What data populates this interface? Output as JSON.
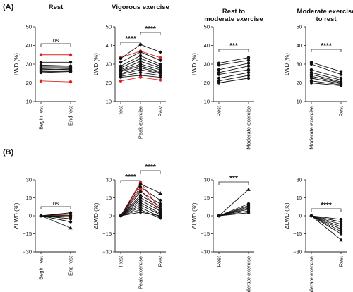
{
  "panel_labels": [
    "(A)",
    "(B)"
  ],
  "colors": {
    "black": "#111111",
    "red": "#e0211b"
  },
  "chart_data": [
    {
      "type": "paired-scatter",
      "row": "A",
      "title": "Rest",
      "ylabel": "LWD (%)",
      "ylim": [
        10,
        50
      ],
      "yticks": [
        10,
        20,
        30,
        40,
        50
      ],
      "categories": [
        "Begin rest",
        "End rest"
      ],
      "annotations": [
        {
          "from": 0,
          "to": 1,
          "text": "ns"
        }
      ],
      "series": [
        {
          "values": [
            35.0,
            35.0
          ],
          "color": "red",
          "marker": "circle"
        },
        {
          "values": [
            31.0,
            31.0
          ],
          "color": "black",
          "marker": "circle"
        },
        {
          "values": [
            29.5,
            29.0
          ],
          "color": "black",
          "marker": "circle"
        },
        {
          "values": [
            28.5,
            28.5
          ],
          "color": "black",
          "marker": "circle"
        },
        {
          "values": [
            28.0,
            28.0
          ],
          "color": "black",
          "marker": "circle"
        },
        {
          "values": [
            27.5,
            27.0
          ],
          "color": "black",
          "marker": "circle"
        },
        {
          "values": [
            27.0,
            27.5
          ],
          "color": "black",
          "marker": "circle"
        },
        {
          "values": [
            26.5,
            26.5
          ],
          "color": "black",
          "marker": "circle"
        },
        {
          "values": [
            26.0,
            26.0
          ],
          "color": "black",
          "marker": "circle"
        },
        {
          "values": [
            25.5,
            26.0
          ],
          "color": "black",
          "marker": "circle"
        },
        {
          "values": [
            21.0,
            20.5
          ],
          "color": "red",
          "marker": "circle"
        }
      ]
    },
    {
      "type": "paired-scatter",
      "row": "A",
      "title": "Vigorous exercise",
      "ylabel": "LWD (%)",
      "ylim": [
        10,
        50
      ],
      "yticks": [
        10,
        20,
        30,
        40,
        50
      ],
      "categories": [
        "Rest",
        "Peak exercise",
        "Rest"
      ],
      "annotations": [
        {
          "from": 0,
          "to": 1,
          "text": "****",
          "level": 0
        },
        {
          "from": 1,
          "to": 2,
          "text": "****",
          "level": 1
        }
      ],
      "series": [
        {
          "values": [
            33.5,
            37.0,
            33.5
          ],
          "color": "red",
          "marker": "circle"
        },
        {
          "values": [
            33.0,
            40.5,
            36.5
          ],
          "color": "black",
          "marker": "circle"
        },
        {
          "values": [
            31.0,
            36.5,
            32.0
          ],
          "color": "black",
          "marker": "circle"
        },
        {
          "values": [
            29.0,
            34.5,
            30.0
          ],
          "color": "black",
          "marker": "circle"
        },
        {
          "values": [
            28.0,
            33.0,
            29.0
          ],
          "color": "black",
          "marker": "circle"
        },
        {
          "values": [
            27.0,
            31.5,
            28.0
          ],
          "color": "black",
          "marker": "circle"
        },
        {
          "values": [
            26.5,
            30.0,
            27.0
          ],
          "color": "black",
          "marker": "circle"
        },
        {
          "values": [
            26.0,
            29.0,
            26.0
          ],
          "color": "black",
          "marker": "circle"
        },
        {
          "values": [
            25.0,
            28.0,
            25.5
          ],
          "color": "black",
          "marker": "circle"
        },
        {
          "values": [
            24.5,
            27.0,
            25.0
          ],
          "color": "black",
          "marker": "circle"
        },
        {
          "values": [
            23.5,
            25.5,
            24.0
          ],
          "color": "black",
          "marker": "circle"
        },
        {
          "values": [
            23.0,
            24.0,
            23.0
          ],
          "color": "black",
          "marker": "circle"
        },
        {
          "values": [
            21.0,
            23.0,
            21.5
          ],
          "color": "red",
          "marker": "circle"
        }
      ]
    },
    {
      "type": "paired-scatter",
      "row": "A",
      "title": "Rest to moderate exercise",
      "title_lines": [
        "Rest to",
        "moderate exercise"
      ],
      "ylabel": "LWD (%)",
      "ylim": [
        10,
        50
      ],
      "yticks": [
        10,
        20,
        30,
        40,
        50
      ],
      "categories": [
        "Rest",
        "Moderate exercise"
      ],
      "annotations": [
        {
          "from": 0,
          "to": 1,
          "text": "***"
        }
      ],
      "series": [
        {
          "values": [
            30.5,
            33.5
          ],
          "color": "black",
          "marker": "circle"
        },
        {
          "values": [
            29.5,
            32.0
          ],
          "color": "black",
          "marker": "circle"
        },
        {
          "values": [
            27.0,
            30.5
          ],
          "color": "black",
          "marker": "circle"
        },
        {
          "values": [
            25.5,
            29.0
          ],
          "color": "black",
          "marker": "circle"
        },
        {
          "values": [
            24.5,
            27.0
          ],
          "color": "black",
          "marker": "circle"
        },
        {
          "values": [
            22.5,
            25.5
          ],
          "color": "black",
          "marker": "circle"
        },
        {
          "values": [
            21.0,
            24.0
          ],
          "color": "black",
          "marker": "circle"
        },
        {
          "values": [
            20.0,
            22.5
          ],
          "color": "black",
          "marker": "circle"
        }
      ]
    },
    {
      "type": "paired-scatter",
      "row": "A",
      "title": "Moderate exercise to rest",
      "title_lines": [
        "Moderate exercise",
        "to rest"
      ],
      "ylabel": "LWD (%)",
      "ylim": [
        10,
        50
      ],
      "yticks": [
        10,
        20,
        30,
        40,
        50
      ],
      "categories": [
        "Moderate exercise",
        "Rest"
      ],
      "annotations": [
        {
          "from": 0,
          "to": 1,
          "text": "****"
        }
      ],
      "series": [
        {
          "values": [
            31.0,
            26.0
          ],
          "color": "black",
          "marker": "circle"
        },
        {
          "values": [
            30.0,
            24.5
          ],
          "color": "black",
          "marker": "circle"
        },
        {
          "values": [
            27.0,
            22.5
          ],
          "color": "black",
          "marker": "circle"
        },
        {
          "values": [
            25.5,
            21.5
          ],
          "color": "black",
          "marker": "circle"
        },
        {
          "values": [
            24.5,
            20.5
          ],
          "color": "black",
          "marker": "circle"
        },
        {
          "values": [
            23.5,
            20.0
          ],
          "color": "black",
          "marker": "circle"
        },
        {
          "values": [
            22.5,
            19.5
          ],
          "color": "black",
          "marker": "circle"
        },
        {
          "values": [
            21.0,
            19.0
          ],
          "color": "black",
          "marker": "circle"
        },
        {
          "values": [
            20.0,
            18.5
          ],
          "color": "black",
          "marker": "circle"
        }
      ]
    },
    {
      "type": "paired-scatter",
      "row": "B",
      "ylabel": "ΔLWD (%)",
      "ylim": [
        -30,
        30
      ],
      "yticks": [
        -30,
        -15,
        0,
        15,
        30
      ],
      "categories": [
        "Begin rest",
        "End rest"
      ],
      "annotations": [
        {
          "from": 0,
          "to": 1,
          "text": "ns"
        }
      ],
      "series": [
        {
          "values": [
            0,
            2.5
          ],
          "color": "black",
          "marker": "circle"
        },
        {
          "values": [
            0,
            1.5
          ],
          "color": "black",
          "marker": "circle"
        },
        {
          "values": [
            0,
            0.5
          ],
          "color": "red",
          "marker": "circle"
        },
        {
          "values": [
            0,
            0.0
          ],
          "color": "black",
          "marker": "circle"
        },
        {
          "values": [
            0,
            -1.0
          ],
          "color": "black",
          "marker": "circle"
        },
        {
          "values": [
            0,
            -2.5
          ],
          "color": "black",
          "marker": "circle"
        },
        {
          "values": [
            0,
            -5.0
          ],
          "color": "black",
          "marker": "circle"
        },
        {
          "values": [
            0,
            -10.0
          ],
          "color": "black",
          "marker": "triangle"
        }
      ]
    },
    {
      "type": "paired-scatter",
      "row": "B",
      "ylabel": "ΔLWD (%)",
      "ylim": [
        -30,
        30
      ],
      "yticks": [
        -30,
        -15,
        0,
        15,
        30
      ],
      "categories": [
        "Rest",
        "Peak exercise",
        "Rest"
      ],
      "annotations": [
        {
          "from": 0,
          "to": 1,
          "text": "****",
          "level": 0
        },
        {
          "from": 1,
          "to": 2,
          "text": "****",
          "level": 1
        }
      ],
      "series": [
        {
          "values": [
            0,
            28.0,
            5.0
          ],
          "color": "red",
          "marker": "circle"
        },
        {
          "values": [
            0,
            26.5,
            19.0
          ],
          "color": "black",
          "marker": "triangle"
        },
        {
          "values": [
            0,
            24.0,
            13.0
          ],
          "color": "black",
          "marker": "circle"
        },
        {
          "values": [
            0,
            22.0,
            3.0
          ],
          "color": "red",
          "marker": "circle"
        },
        {
          "values": [
            0,
            20.0,
            10.0
          ],
          "color": "black",
          "marker": "circle"
        },
        {
          "values": [
            0,
            17.0,
            8.0
          ],
          "color": "black",
          "marker": "circle"
        },
        {
          "values": [
            0,
            15.0,
            6.0
          ],
          "color": "black",
          "marker": "circle"
        },
        {
          "values": [
            0,
            13.0,
            4.0
          ],
          "color": "black",
          "marker": "circle"
        },
        {
          "values": [
            0,
            11.0,
            2.0
          ],
          "color": "black",
          "marker": "circle"
        },
        {
          "values": [
            0,
            9.0,
            1.0
          ],
          "color": "black",
          "marker": "circle"
        },
        {
          "values": [
            0,
            7.0,
            -1.0
          ],
          "color": "black",
          "marker": "circle"
        },
        {
          "values": [
            0,
            5.0,
            -2.0
          ],
          "color": "black",
          "marker": "circle"
        },
        {
          "values": [
            0,
            3.0,
            0.0
          ],
          "color": "black",
          "marker": "circle"
        }
      ]
    },
    {
      "type": "paired-scatter",
      "row": "B",
      "ylabel": "ΔLWD (%)",
      "ylim": [
        -30,
        30
      ],
      "yticks": [
        -30,
        -15,
        0,
        15,
        30
      ],
      "categories": [
        "Rest",
        "Moderate exercise"
      ],
      "annotations": [
        {
          "from": 0,
          "to": 1,
          "text": "***"
        }
      ],
      "series": [
        {
          "values": [
            0,
            22.0
          ],
          "color": "black",
          "marker": "triangle"
        },
        {
          "values": [
            0,
            10.0
          ],
          "color": "black",
          "marker": "circle"
        },
        {
          "values": [
            0,
            8.5
          ],
          "color": "black",
          "marker": "circle"
        },
        {
          "values": [
            0,
            7.5
          ],
          "color": "black",
          "marker": "circle"
        },
        {
          "values": [
            0,
            6.5
          ],
          "color": "black",
          "marker": "circle"
        },
        {
          "values": [
            0,
            5.5
          ],
          "color": "black",
          "marker": "circle"
        },
        {
          "values": [
            0,
            4.0
          ],
          "color": "black",
          "marker": "circle"
        },
        {
          "values": [
            0,
            2.5
          ],
          "color": "black",
          "marker": "circle"
        }
      ]
    },
    {
      "type": "paired-scatter",
      "row": "B",
      "ylabel": "ΔLWD (%)",
      "ylim": [
        -30,
        30
      ],
      "yticks": [
        -30,
        -15,
        0,
        15,
        30
      ],
      "categories": [
        "Moderate exercise",
        "Rest"
      ],
      "annotations": [
        {
          "from": 0,
          "to": 1,
          "text": "****"
        }
      ],
      "series": [
        {
          "values": [
            0,
            -3.0
          ],
          "color": "black",
          "marker": "circle"
        },
        {
          "values": [
            0,
            -5.0
          ],
          "color": "black",
          "marker": "circle"
        },
        {
          "values": [
            0,
            -7.0
          ],
          "color": "black",
          "marker": "circle"
        },
        {
          "values": [
            0,
            -9.0
          ],
          "color": "black",
          "marker": "circle"
        },
        {
          "values": [
            0,
            -11.0
          ],
          "color": "black",
          "marker": "circle"
        },
        {
          "values": [
            0,
            -13.0
          ],
          "color": "black",
          "marker": "circle"
        },
        {
          "values": [
            0,
            -15.0
          ],
          "color": "black",
          "marker": "circle"
        },
        {
          "values": [
            0,
            -20.0
          ],
          "color": "black",
          "marker": "triangle"
        }
      ]
    }
  ]
}
